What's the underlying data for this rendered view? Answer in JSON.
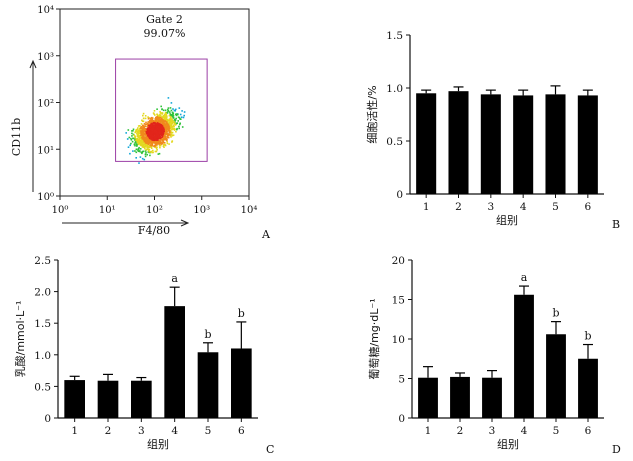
{
  "chart_data": [
    {
      "panel": "A",
      "type": "scatter",
      "xlabel": "F4/80",
      "ylabel": "CD11b",
      "xscale": "log",
      "yscale": "log",
      "xlim": [
        1,
        10000
      ],
      "ylim": [
        1,
        10000
      ],
      "x_ticks": [
        "10⁰",
        "10¹",
        "10²",
        "10³",
        "10⁴"
      ],
      "y_ticks": [
        "10⁰",
        "10¹",
        "10²",
        "10³",
        "10⁴"
      ],
      "gate": {
        "name": "Gate 2",
        "percent": "99.07%",
        "x_range": [
          15,
          1300
        ],
        "y_range": [
          5.5,
          850
        ]
      },
      "density_centre": [
        100,
        25
      ],
      "gate_color": "#9b3fa6"
    },
    {
      "panel": "B",
      "type": "bar",
      "categories": [
        "1",
        "2",
        "3",
        "4",
        "5",
        "6"
      ],
      "values": [
        0.95,
        0.97,
        0.94,
        0.93,
        0.94,
        0.93
      ],
      "errors": [
        0.03,
        0.04,
        0.04,
        0.05,
        0.08,
        0.05
      ],
      "letters": [
        "",
        "",
        "",
        "",
        "",
        ""
      ],
      "xlabel": "组别",
      "ylabel": "细胞活性/%",
      "ylim": [
        0,
        1.5
      ],
      "yticks": [
        "0",
        "0.5",
        "1.0",
        "1.5"
      ]
    },
    {
      "panel": "C",
      "type": "bar",
      "categories": [
        "1",
        "2",
        "3",
        "4",
        "5",
        "6"
      ],
      "values": [
        0.6,
        0.59,
        0.59,
        1.77,
        1.04,
        1.1
      ],
      "errors": [
        0.06,
        0.1,
        0.05,
        0.3,
        0.15,
        0.42
      ],
      "letters": [
        "",
        "",
        "",
        "a",
        "b",
        "b"
      ],
      "xlabel": "组别",
      "ylabel": "乳酸/mmol·L⁻¹",
      "ylim": [
        0,
        2.5
      ],
      "yticks": [
        "0",
        "0.5",
        "1.0",
        "1.5",
        "2.0",
        "2.5"
      ]
    },
    {
      "panel": "D",
      "type": "bar",
      "categories": [
        "1",
        "2",
        "3",
        "4",
        "5",
        "6"
      ],
      "values": [
        5.1,
        5.2,
        5.1,
        15.6,
        10.6,
        7.5
      ],
      "errors": [
        1.4,
        0.5,
        0.9,
        1.1,
        1.6,
        1.8
      ],
      "letters": [
        "",
        "",
        "",
        "a",
        "b",
        "b"
      ],
      "xlabel": "组别",
      "ylabel": "葡萄糖/mg·dL⁻¹",
      "ylim": [
        0,
        20
      ],
      "yticks": [
        "0",
        "5",
        "10",
        "15",
        "20"
      ]
    }
  ]
}
